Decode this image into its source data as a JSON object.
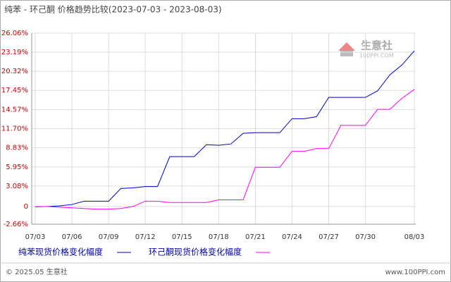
{
  "chart_data": {
    "type": "line",
    "title": "纯苯 - 环己酮 价格趋势比较(2023-07-03 - 2023-08-03)",
    "categories": [
      "07/03",
      null,
      null,
      "07/06",
      null,
      null,
      "07/09",
      null,
      null,
      "07/12",
      null,
      null,
      "07/15",
      null,
      null,
      "07/18",
      null,
      null,
      "07/21",
      null,
      null,
      "07/24",
      null,
      null,
      "07/27",
      null,
      null,
      "07/30",
      null,
      null,
      null,
      "08/03"
    ],
    "series": [
      {
        "name": "纯苯现货价格变化幅度",
        "color": "#0000cc",
        "values": [
          -0.05,
          0,
          0.1,
          0.3,
          0.8,
          0.8,
          0.8,
          2.7,
          2.8,
          3.0,
          3.0,
          7.5,
          7.5,
          7.5,
          9.3,
          9.2,
          9.4,
          11.0,
          11.1,
          11.1,
          11.1,
          13.2,
          13.2,
          13.5,
          16.4,
          16.4,
          16.4,
          16.4,
          17.4,
          19.8,
          21.3,
          23.4
        ]
      },
      {
        "name": "环己酮现货价格变化幅度",
        "color": "#ff00ff",
        "values": [
          -0.05,
          0,
          -0.1,
          -0.2,
          -0.3,
          -0.4,
          -0.4,
          -0.3,
          0,
          0.8,
          0.8,
          0.6,
          0.6,
          0.6,
          0.6,
          1.0,
          1.0,
          1.0,
          5.9,
          5.9,
          5.9,
          8.3,
          8.3,
          8.7,
          8.7,
          12.2,
          12.2,
          12.2,
          14.6,
          14.6,
          16.3,
          17.6
        ]
      }
    ],
    "ylim": [
      -2.66,
      26.06
    ],
    "yticks": [
      {
        "value": -2.66,
        "label": "-2.66%"
      },
      0,
      {
        "value": 3.08,
        "label": "3.08%"
      },
      {
        "value": 5.95,
        "label": "5.95%"
      },
      {
        "value": 8.83,
        "label": "8.83%"
      },
      {
        "value": 11.7,
        "label": "11.70%"
      },
      {
        "value": 14.57,
        "label": "14.57%"
      },
      {
        "value": 17.45,
        "label": "17.45%"
      },
      {
        "value": 20.32,
        "label": "20.32%"
      },
      {
        "value": 23.19,
        "label": "23.19%"
      },
      {
        "value": 26.06,
        "label": "26.06%"
      }
    ],
    "grid": true,
    "watermark": {
      "name": "生意社",
      "url": "100PPI.COM"
    },
    "footer": {
      "copyright": "© 2025.05 生意社",
      "site": "www.100PPI.com"
    }
  }
}
